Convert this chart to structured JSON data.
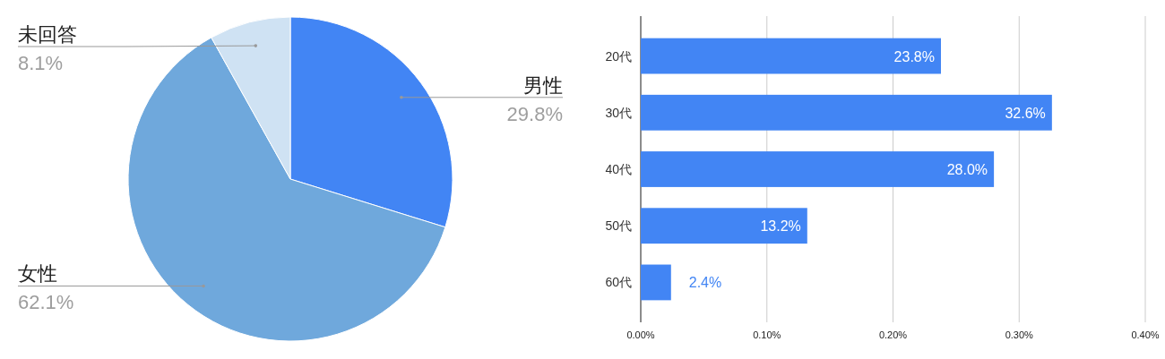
{
  "chart_data": [
    {
      "type": "pie",
      "categories": [
        "男性",
        "女性",
        "未回答"
      ],
      "values": [
        29.8,
        62.1,
        8.1
      ],
      "colors": [
        "#4285f4",
        "#6fa8dc",
        "#cfe2f3"
      ],
      "value_labels": [
        "29.8%",
        "62.1%",
        "8.1%"
      ]
    },
    {
      "type": "bar",
      "orientation": "horizontal",
      "categories": [
        "20代",
        "30代",
        "40代",
        "50代",
        "60代"
      ],
      "values": [
        0.238,
        0.326,
        0.28,
        0.132,
        0.024
      ],
      "color": "#4285f4",
      "value_labels": [
        "23.8%",
        "32.6%",
        "28.0%",
        "13.2%",
        "2.4%"
      ],
      "xlim": [
        0,
        0.4
      ],
      "xticks": [
        {
          "value": 0,
          "label": "0.00%"
        },
        {
          "value": 0.1,
          "label": "0.10%"
        },
        {
          "value": 0.2,
          "label": "0.20%"
        },
        {
          "value": 0.3,
          "label": "0.30%"
        },
        {
          "value": 0.4,
          "label": "0.40%"
        }
      ],
      "grid": "x"
    }
  ]
}
